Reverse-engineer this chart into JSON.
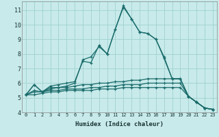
{
  "xlabel": "Humidex (Indice chaleur)",
  "bg_color": "#c8eaea",
  "grid_color": "#a0d0d0",
  "line_color": "#1a6b6b",
  "xlim": [
    -0.5,
    23.5
  ],
  "ylim": [
    4,
    11.6
  ],
  "xticks": [
    0,
    1,
    2,
    3,
    4,
    5,
    6,
    7,
    8,
    9,
    10,
    11,
    12,
    13,
    14,
    15,
    16,
    17,
    18,
    19,
    20,
    21,
    22,
    23
  ],
  "yticks": [
    4,
    5,
    6,
    7,
    8,
    9,
    10,
    11
  ],
  "series": [
    [
      5.2,
      5.9,
      5.4,
      5.8,
      5.9,
      6.0,
      6.1,
      7.5,
      7.4,
      8.6,
      8.0,
      9.7,
      11.3,
      10.4,
      9.5,
      9.4,
      9.0,
      7.8,
      6.3,
      6.3,
      5.1,
      4.7,
      4.3,
      4.2
    ],
    [
      5.2,
      5.9,
      5.4,
      5.7,
      5.7,
      5.8,
      6.0,
      7.6,
      7.8,
      8.5,
      8.0,
      9.7,
      11.2,
      10.4,
      9.5,
      9.4,
      9.0,
      7.7,
      6.3,
      6.3,
      5.1,
      4.7,
      4.3,
      4.2
    ],
    [
      5.2,
      5.5,
      5.4,
      5.6,
      5.7,
      5.7,
      5.8,
      5.9,
      5.9,
      6.0,
      6.0,
      6.1,
      6.1,
      6.2,
      6.2,
      6.3,
      6.3,
      6.3,
      6.3,
      6.3,
      5.1,
      4.7,
      4.3,
      4.2
    ],
    [
      5.2,
      5.4,
      5.4,
      5.5,
      5.5,
      5.6,
      5.6,
      5.6,
      5.7,
      5.7,
      5.8,
      5.8,
      5.9,
      5.9,
      5.9,
      6.0,
      6.0,
      6.0,
      6.0,
      6.0,
      5.1,
      4.7,
      4.3,
      4.2
    ],
    [
      5.2,
      5.2,
      5.3,
      5.4,
      5.4,
      5.5,
      5.5,
      5.5,
      5.5,
      5.6,
      5.6,
      5.6,
      5.7,
      5.7,
      5.7,
      5.7,
      5.7,
      5.7,
      5.7,
      5.7,
      5.1,
      4.7,
      4.3,
      4.2
    ]
  ],
  "xlabel_fontsize": 6.5,
  "tick_fontsize_x": 5.0,
  "tick_fontsize_y": 6.0
}
